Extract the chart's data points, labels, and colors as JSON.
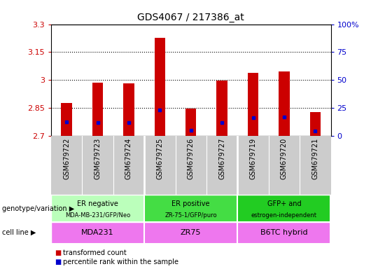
{
  "title": "GDS4067 / 217386_at",
  "samples": [
    "GSM679722",
    "GSM679723",
    "GSM679724",
    "GSM679725",
    "GSM679726",
    "GSM679727",
    "GSM679719",
    "GSM679720",
    "GSM679721"
  ],
  "red_values": [
    2.875,
    2.985,
    2.982,
    3.225,
    2.848,
    2.998,
    3.038,
    3.045,
    2.828
  ],
  "blue_values": [
    2.775,
    2.772,
    2.77,
    2.84,
    2.728,
    2.772,
    2.798,
    2.8,
    2.727
  ],
  "ylim": [
    2.7,
    3.3
  ],
  "yticks": [
    2.7,
    2.85,
    3.0,
    3.15,
    3.3
  ],
  "ytick_labels": [
    "2.7",
    "2.85",
    "3",
    "3.15",
    "3.3"
  ],
  "right_yticks": [
    0,
    25,
    50,
    75,
    100
  ],
  "right_ytick_labels": [
    "0",
    "25",
    "50",
    "75",
    "100%"
  ],
  "grid_lines": [
    2.85,
    3.0,
    3.15
  ],
  "bar_bottom": 2.7,
  "groups": [
    {
      "label": "ER negative",
      "sublabel": "MDA-MB-231/GFP/Neo",
      "start": 0,
      "end": 3,
      "color": "#bbffbb"
    },
    {
      "label": "ER positive",
      "sublabel": "ZR-75-1/GFP/puro",
      "start": 3,
      "end": 6,
      "color": "#44dd44"
    },
    {
      "label": "GFP+ and",
      "sublabel": "estrogen-independent",
      "start": 6,
      "end": 9,
      "color": "#22cc22"
    }
  ],
  "cell_lines": [
    {
      "label": "MDA231",
      "start": 0,
      "end": 3
    },
    {
      "label": "ZR75",
      "start": 3,
      "end": 6
    },
    {
      "label": "B6TC hybrid",
      "start": 6,
      "end": 9
    }
  ],
  "cell_line_color": "#ee77ee",
  "legend_red": "transformed count",
  "legend_blue": "percentile rank within the sample",
  "red_color": "#cc0000",
  "blue_color": "#0000cc",
  "left_tick_color": "#cc0000",
  "right_tick_color": "#0000cc",
  "bar_width": 0.35,
  "blue_marker_size": 3.5,
  "sample_bg_color": "#cccccc",
  "sample_sep_color": "#aaaaaa"
}
